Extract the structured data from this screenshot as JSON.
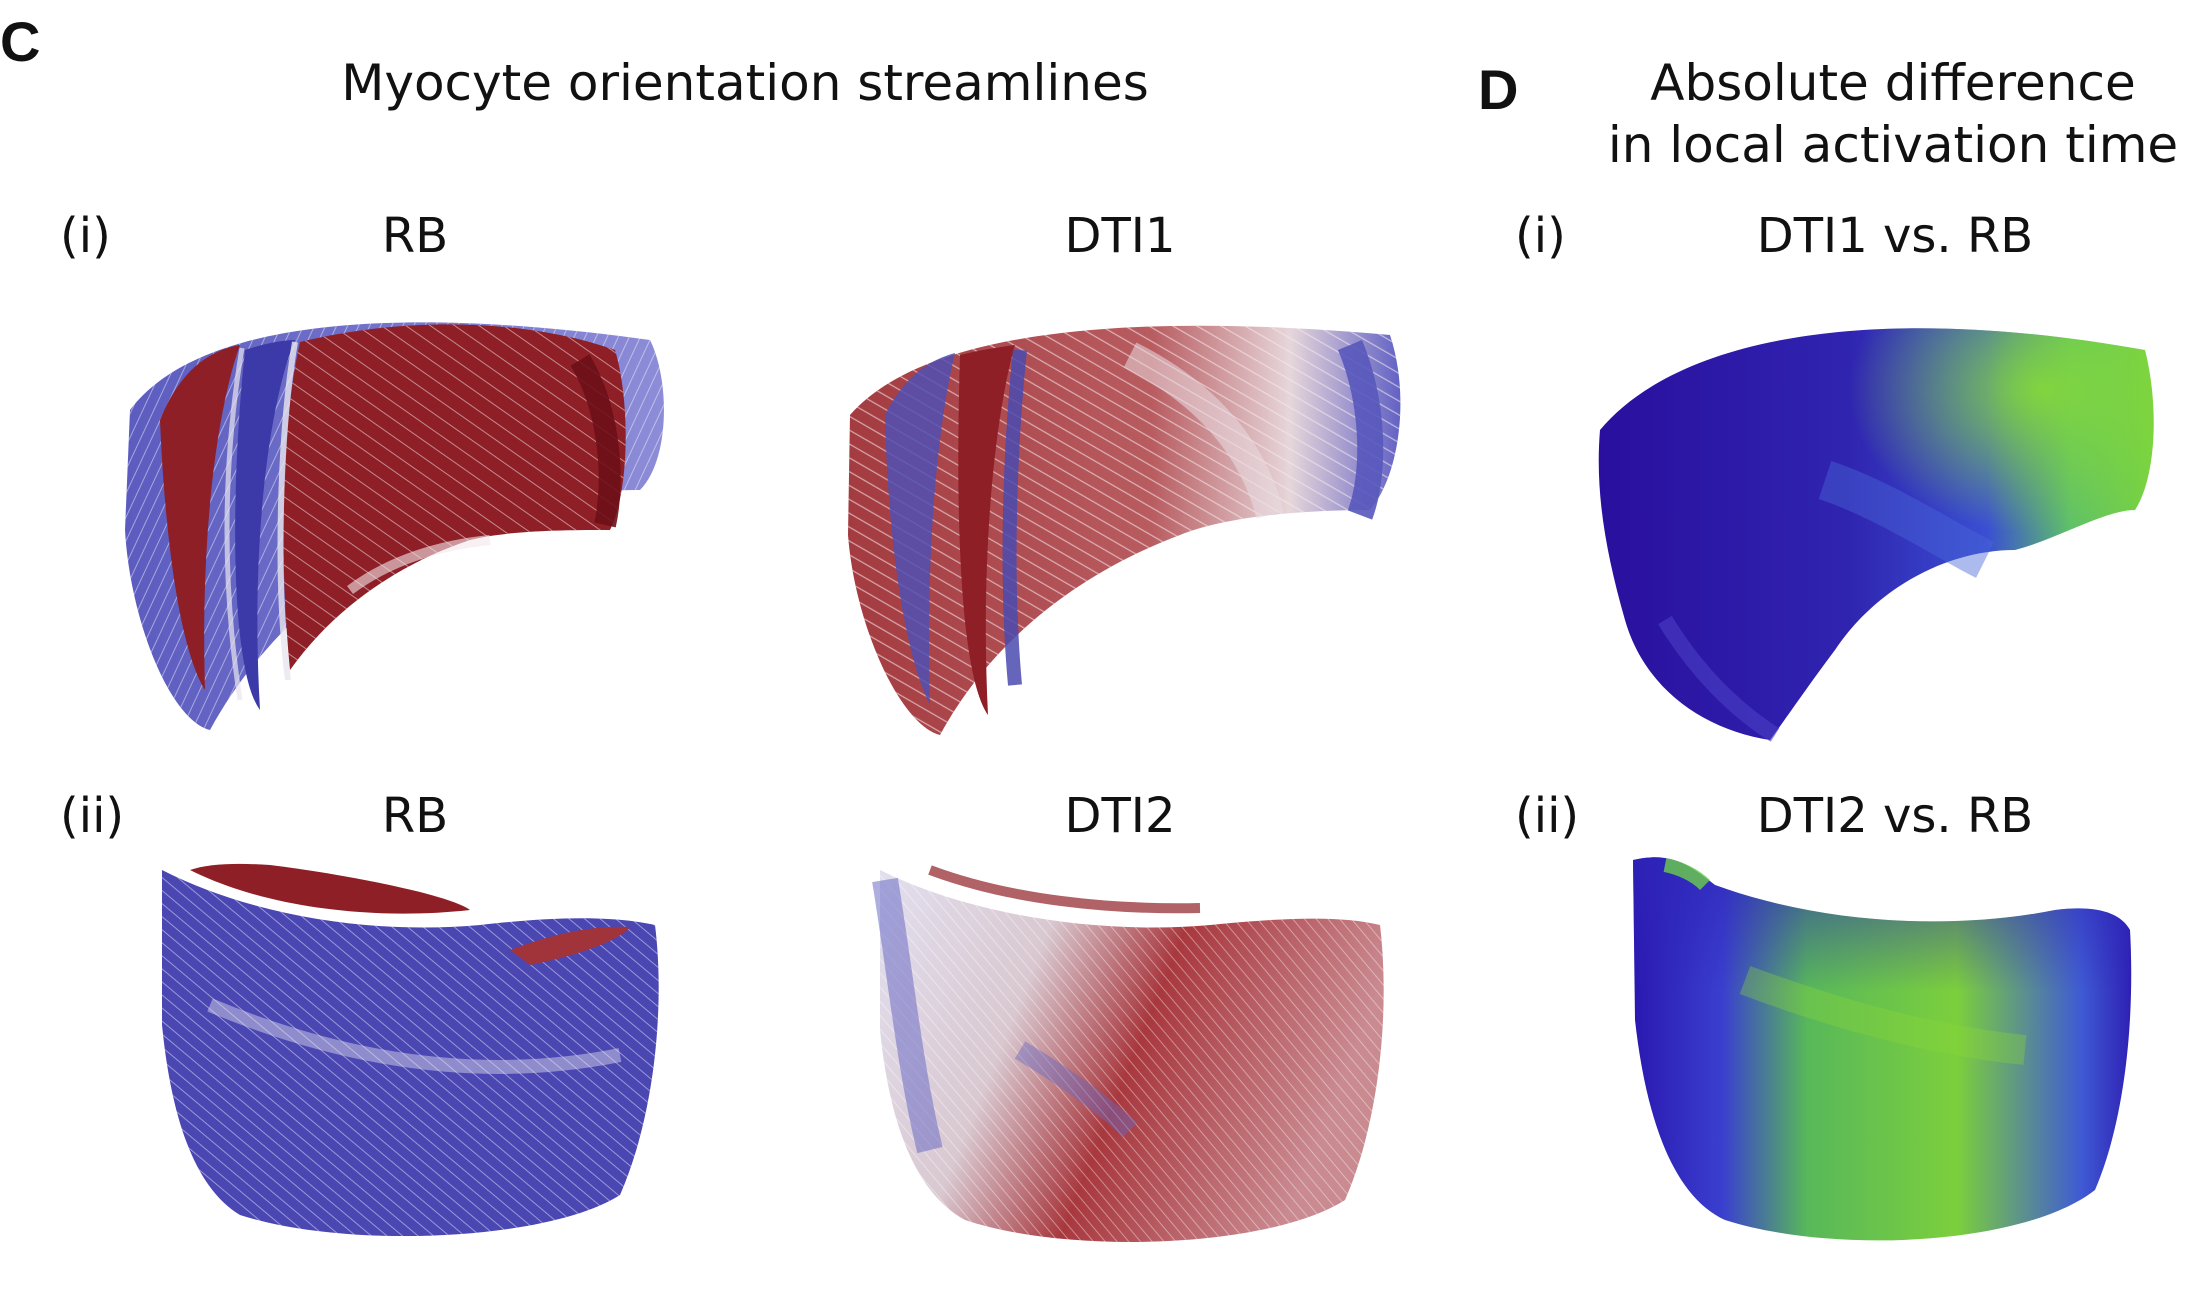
{
  "panel_c": {
    "letter": "C",
    "title": "Myocyte orientation streamlines",
    "row_i": {
      "label": "(i)",
      "left_label": "RB",
      "right_label": "DTI1"
    },
    "row_ii": {
      "label": "(ii)",
      "left_label": "RB",
      "right_label": "DTI2"
    }
  },
  "panel_d": {
    "letter": "D",
    "title_line1": "Absolute difference",
    "title_line2": "in local activation time",
    "row_i": {
      "label": "(i)",
      "label_right": "DTI1 vs. RB"
    },
    "row_ii": {
      "label": "(ii)",
      "label_right": "DTI2 vs. RB"
    }
  },
  "colors": {
    "streamline_red": "#8e1f26",
    "streamline_blue": "#4646b4",
    "streamline_white": "#e8e6ee",
    "lat_dark_blue": "#2d14a8",
    "lat_blue": "#3c46d2",
    "lat_green": "#78d23c"
  }
}
